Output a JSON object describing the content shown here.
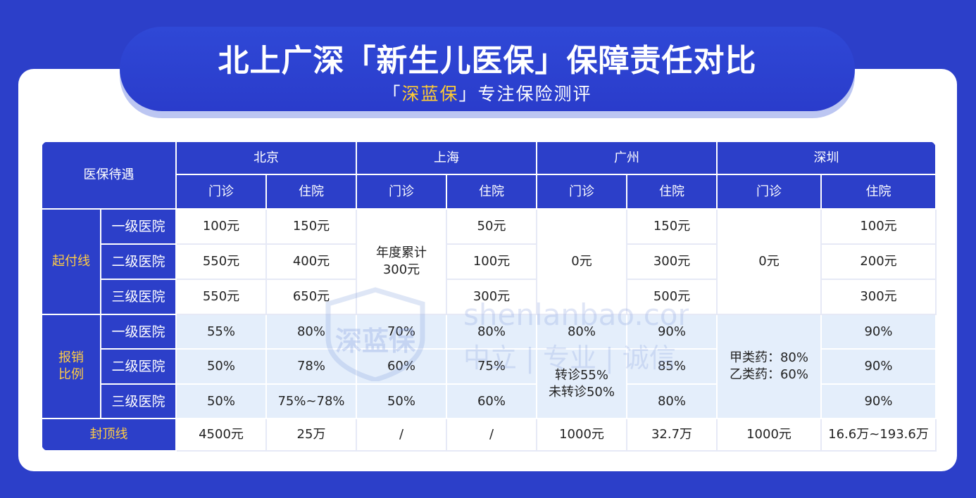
{
  "header": {
    "title": "北上广深「新生儿医保」保障责任对比",
    "subtitle_pre": "「",
    "subtitle_brand": "深蓝保",
    "subtitle_post": "」专注保险测评"
  },
  "table": {
    "corner": "医保待遇",
    "cities": [
      "北京",
      "上海",
      "广州",
      "深圳"
    ],
    "sub_cols": [
      "门诊",
      "住院",
      "门诊",
      "住院",
      "门诊",
      "住院",
      "门诊",
      "住院"
    ],
    "hospital_levels": [
      "一级医院",
      "二级医院",
      "三级医院"
    ],
    "deductible": {
      "label": "起付线",
      "bj_outpatient": [
        "100元",
        "550元",
        "550元"
      ],
      "bj_inpatient": [
        "150元",
        "400元",
        "650元"
      ],
      "sh_outpatient_merged": "年度累计\n300元",
      "sh_inpatient": [
        "50元",
        "100元",
        "300元"
      ],
      "gz_outpatient_merged": "0元",
      "gz_inpatient": [
        "150元",
        "300元",
        "500元"
      ],
      "sz_outpatient_merged": "0元",
      "sz_inpatient": [
        "100元",
        "200元",
        "300元"
      ]
    },
    "reimbursement": {
      "label": "报销\n比例",
      "bj_outpatient": [
        "55%",
        "50%",
        "50%"
      ],
      "bj_inpatient": [
        "80%",
        "78%",
        "75%~78%"
      ],
      "sh_outpatient": [
        "70%",
        "60%",
        "50%"
      ],
      "sh_inpatient": [
        "80%",
        "75%",
        "60%"
      ],
      "gz_outpatient_first": "80%",
      "gz_outpatient_merged": "转诊55%\n未转诊50%",
      "gz_inpatient": [
        "90%",
        "85%",
        "80%"
      ],
      "sz_outpatient_merged": "甲类药：80%\n乙类药：60%",
      "sz_inpatient": [
        "90%",
        "90%",
        "90%"
      ]
    },
    "cap": {
      "label": "封顶线",
      "values": [
        "4500元",
        "25万",
        "/",
        "/",
        "1000元",
        "32.7万",
        "1000元",
        "16.6万~193.6万"
      ]
    }
  },
  "watermark": {
    "logo": "深蓝保",
    "url": "shenlanbao.com",
    "slogan": "中立 | 专业 | 诚信"
  }
}
